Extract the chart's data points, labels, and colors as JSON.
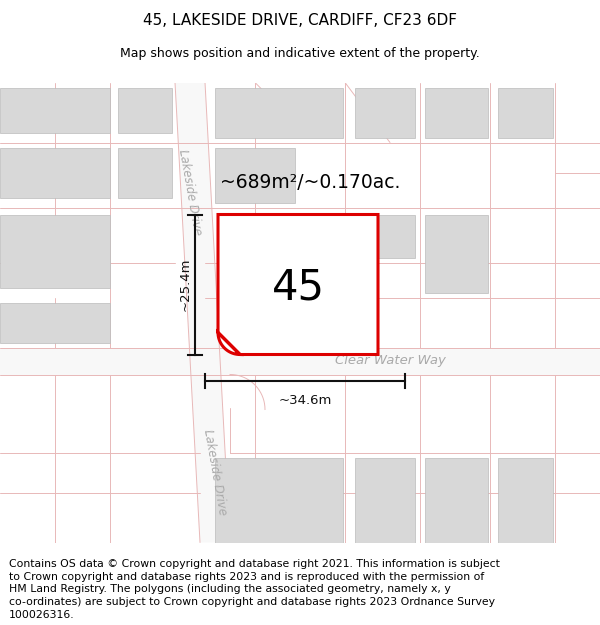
{
  "title": "45, LAKESIDE DRIVE, CARDIFF, CF23 6DF",
  "subtitle": "Map shows position and indicative extent of the property.",
  "area_text": "~689m²/~0.170ac.",
  "house_number": "45",
  "width_label": "~34.6m",
  "height_label": "~25.4m",
  "street_lakeside_upper": "Lakeside Drive",
  "street_lakeside_lower": "Lakeside Drive",
  "street_clearwater": "Clear Water Way",
  "map_bg": "#f2f2f2",
  "building_color": "#d8d8d8",
  "building_edge": "#bbbbbb",
  "road_fill": "#f8f8f8",
  "road_line_color": "#e8b8b8",
  "highlight_color": "#dd0000",
  "dim_color": "#111111",
  "title_fontsize": 11,
  "subtitle_fontsize": 9,
  "footer_fontsize": 7.8,
  "footer_lines": [
    "Contains OS data © Crown copyright and database right 2021. This information is subject",
    "to Crown copyright and database rights 2023 and is reproduced with the permission of",
    "HM Land Registry. The polygons (including the associated geometry, namely x, y",
    "co-ordinates) are subject to Crown copyright and database rights 2023 Ordnance Survey",
    "100026316."
  ]
}
